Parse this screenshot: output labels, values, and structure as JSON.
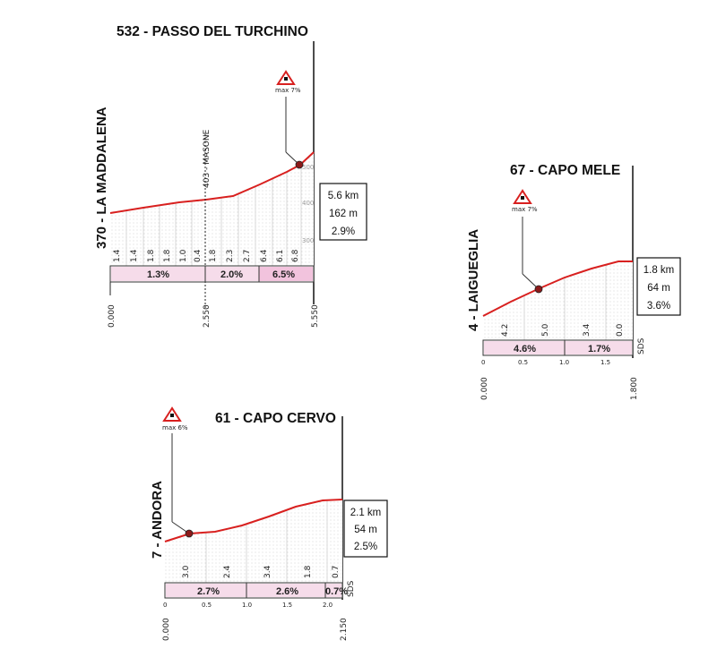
{
  "climbs": [
    {
      "title": "532 - PASSO DEL TURCHINO",
      "start_label": "370 - LA MADDALENA",
      "info": {
        "length": "5.6 km",
        "gain": "162 m",
        "avg": "2.9%"
      },
      "max_label": "max 7%",
      "intermediate_label": "403 - MASONE",
      "km_labels": [
        "0.000",
        "2.550",
        "5.550"
      ],
      "alt_scale": [
        "500",
        "400",
        "300"
      ],
      "segment_values": [
        "1.4",
        "1.4",
        "1.8",
        "1.8",
        "1.0",
        "0.4",
        "1.8",
        "2.3",
        "2.7",
        "6.4",
        "6.1",
        "6.8"
      ],
      "gradients": [
        "1.3%",
        "2.0%",
        "6.5%"
      ],
      "colors": {
        "line": "#d8201f",
        "band": "#f6dcea",
        "dot": "#8b1a1a"
      }
    },
    {
      "title": "67 - CAPO MELE",
      "start_label": "4 - LAIGUEGLIA",
      "info": {
        "length": "1.8 km",
        "gain": "64 m",
        "avg": "3.6%"
      },
      "max_label": "max 7%",
      "side_label": "SDS",
      "km_labels": [
        "0.000",
        "1.800"
      ],
      "minor_ticks": [
        "0",
        "0.5",
        "1.0",
        "1.5"
      ],
      "segment_values": [
        "4.2",
        "5.0",
        "3.4",
        "0.0"
      ],
      "gradients": [
        "4.6%",
        "1.7%"
      ]
    },
    {
      "title": "61 - CAPO CERVO",
      "start_label": "7 - ANDORA",
      "info": {
        "length": "2.1 km",
        "gain": "54 m",
        "avg": "2.5%"
      },
      "max_label": "max 6%",
      "side_label": "SDS",
      "km_labels": [
        "0.000",
        "2.150"
      ],
      "minor_ticks": [
        "0",
        "0.5",
        "1.0",
        "1.5",
        "2.0"
      ],
      "segment_values": [
        "3.0",
        "2.4",
        "3.4",
        "1.8",
        "0.7"
      ],
      "gradients": [
        "2.7%",
        "2.6%",
        "0.7%"
      ]
    }
  ]
}
